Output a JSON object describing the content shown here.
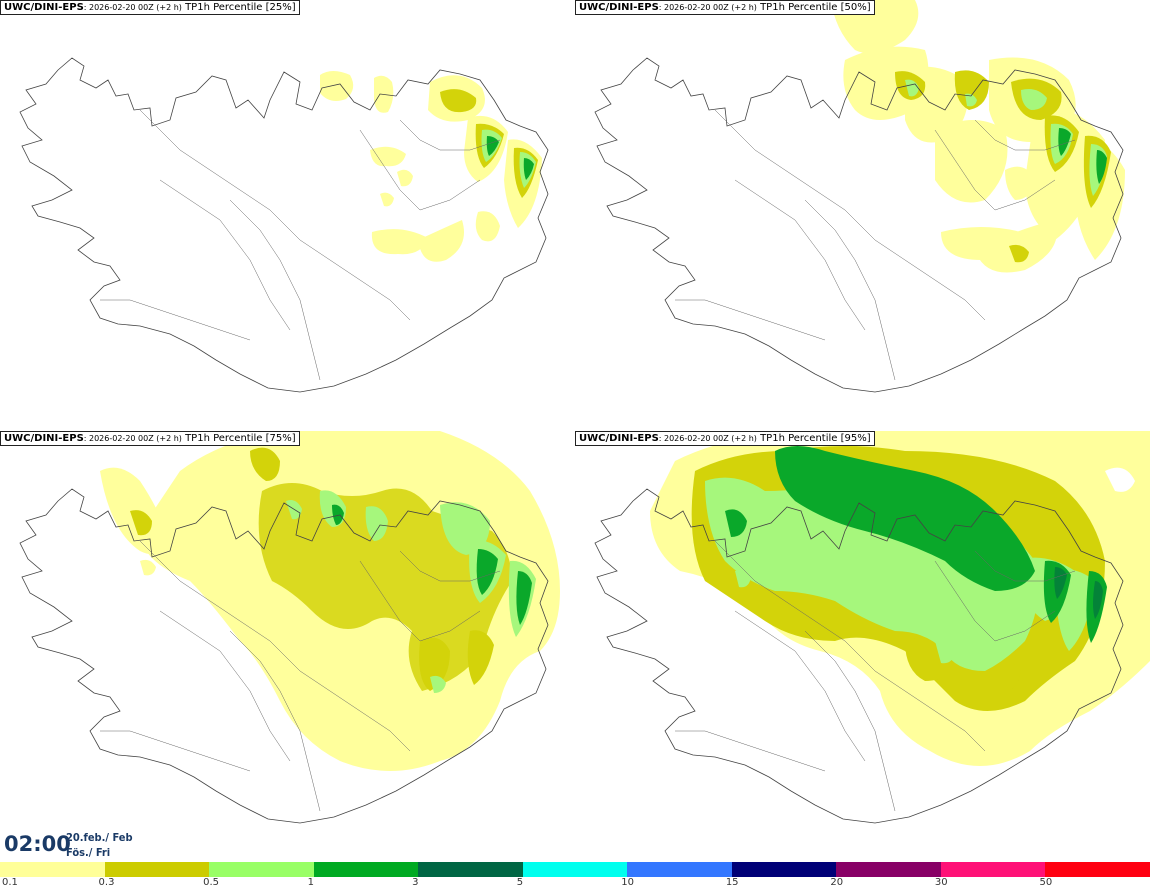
{
  "panels": [
    {
      "model": "UWC/DINI-EPS",
      "run": ": 2026-02-20 00Z (+2 h)",
      "field": " TP1h Percentile [25%]"
    },
    {
      "model": "UWC/DINI-EPS",
      "run": ": 2026-02-20 00Z (+2 h)",
      "field": " TP1h Percentile [50%]"
    },
    {
      "model": "UWC/DINI-EPS",
      "run": ": 2026-02-20 00Z (+2 h)",
      "field": " TP1h Percentile [75%]"
    },
    {
      "model": "UWC/DINI-EPS",
      "run": ": 2026-02-20 00Z (+2 h)",
      "field": " TP1h Percentile [95%]"
    }
  ],
  "valid_time": {
    "time": "02:00",
    "date": "20.feb./ Feb",
    "day": "Fös./ Fri"
  },
  "legend": {
    "ticks": [
      "0.1",
      "0.3",
      "0.5",
      "1",
      "3",
      "5",
      "10",
      "15",
      "20",
      "30",
      "50"
    ],
    "colors": [
      "#ffff99",
      "#cccc00",
      "#99ff66",
      "#00aa22",
      "#006644",
      "#00ffee",
      "#3377ff",
      "#000077",
      "#880066",
      "#ff1177",
      "#ff0011"
    ]
  },
  "colors": {
    "lvl1": "#ffff9c",
    "lvl2": "#d3d30a",
    "lvl3": "#a6f77c",
    "lvl4": "#0aa82a",
    "coast": "#444444"
  }
}
